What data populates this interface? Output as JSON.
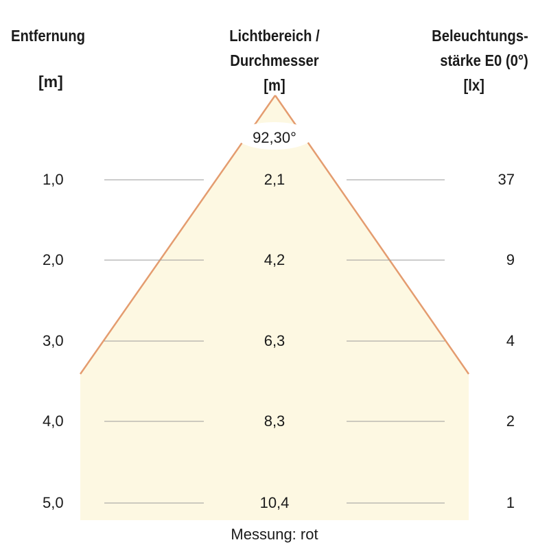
{
  "headers": {
    "distance": "Entfernung",
    "distance_unit": "[m]",
    "diameter_line1": "Lichtbereich /",
    "diameter_line2": "Durchmesser",
    "diameter_unit": "[m]",
    "illuminance_line1": "Beleuchtungs-",
    "illuminance_line2": "stärke E0 (0°)",
    "illuminance_unit": "[lx]"
  },
  "beam_angle": "92,30°",
  "footer": "Messung: rot",
  "colors": {
    "cone_fill": "#fdf8e2",
    "cone_edge": "#e49c6f",
    "row_line": "#9a9a9a"
  },
  "rows": [
    {
      "distance": "1,0",
      "diameter": "2,1",
      "illuminance": "37"
    },
    {
      "distance": "2,0",
      "diameter": "4,2",
      "illuminance": "9"
    },
    {
      "distance": "3,0",
      "diameter": "6,3",
      "illuminance": "4"
    },
    {
      "distance": "4,0",
      "diameter": "8,3",
      "illuminance": "2"
    },
    {
      "distance": "5,0",
      "diameter": "10,4",
      "illuminance": "1"
    }
  ]
}
